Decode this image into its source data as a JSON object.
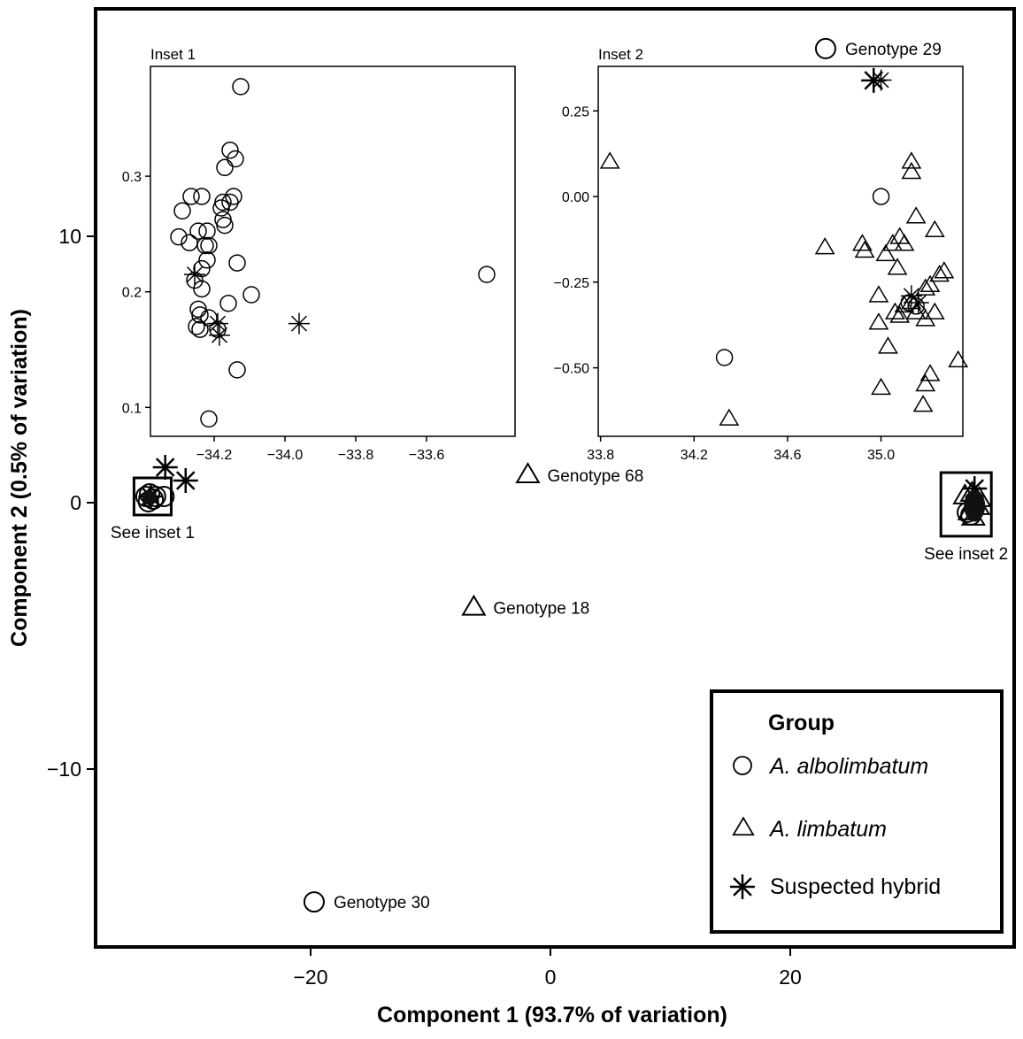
{
  "chart_data": {
    "type": "scatter",
    "xlabel": "Component 1 (93.7% of variation)",
    "ylabel": "Component 2 (0.5% of variation)",
    "xlim": [
      -38,
      38.5
    ],
    "ylim": [
      -16.8,
      18.6
    ],
    "xticks": [
      -20,
      0,
      20
    ],
    "xtick_labels": [
      "−20",
      "0",
      "20"
    ],
    "yticks": [
      -10,
      0,
      10
    ],
    "ytick_labels": [
      "−10",
      "0",
      "10"
    ],
    "legend": {
      "title": "Group",
      "position": "bottom-right",
      "entries": [
        {
          "label": "A. albolimbatum",
          "marker": "circle",
          "italic": true
        },
        {
          "label": "A. limbatum",
          "marker": "triangle",
          "italic": true
        },
        {
          "label": "Suspected hybrid",
          "marker": "asterisk",
          "italic": false
        }
      ]
    },
    "main_points": [
      {
        "group": "circle",
        "x": -19.8,
        "y": -15.1
      },
      {
        "group": "circle",
        "x": 22.8,
        "y": 17.1
      },
      {
        "group": "triangle",
        "x": -6.5,
        "y": -4.0
      },
      {
        "group": "triangle",
        "x": -2.0,
        "y": 1.0
      },
      {
        "group": "asterisk",
        "x": -32.2,
        "y": 1.3
      },
      {
        "group": "asterisk",
        "x": -30.5,
        "y": 0.8
      },
      {
        "group": "asterisk",
        "x": 26.8,
        "y": 15.9
      },
      {
        "group": "circle",
        "x": -33.8,
        "y": 0.2
      },
      {
        "group": "circle",
        "x": -33.5,
        "y": 0.3
      },
      {
        "group": "circle",
        "x": -33.2,
        "y": 0.1
      },
      {
        "group": "circle",
        "x": -33.0,
        "y": 0.2
      },
      {
        "group": "circle",
        "x": -33.6,
        "y": 0.0
      },
      {
        "group": "circle",
        "x": -32.3,
        "y": 0.2
      },
      {
        "group": "asterisk",
        "x": -33.4,
        "y": 0.2
      },
      {
        "group": "triangle",
        "x": 34.4,
        "y": 0.2
      },
      {
        "group": "triangle",
        "x": 35.0,
        "y": 0.3
      },
      {
        "group": "triangle",
        "x": 35.2,
        "y": 0.0
      },
      {
        "group": "triangle",
        "x": 35.5,
        "y": -0.2
      },
      {
        "group": "triangle",
        "x": 34.8,
        "y": -0.4
      },
      {
        "group": "triangle",
        "x": 35.1,
        "y": -0.6
      },
      {
        "group": "triangle",
        "x": 35.6,
        "y": 0.1
      },
      {
        "group": "circle",
        "x": 34.6,
        "y": -0.4
      },
      {
        "group": "circle",
        "x": 34.9,
        "y": -0.5
      },
      {
        "group": "asterisk",
        "x": 35.2,
        "y": 0.5
      }
    ],
    "annotations": [
      {
        "text": "Genotype 29",
        "x": 22.8,
        "y": 17.1
      },
      {
        "text": "Genotype 68",
        "x": -2.0,
        "y": 1.0
      },
      {
        "text": "Genotype 18",
        "x": -6.5,
        "y": -4.0
      },
      {
        "text": "Genotype 30",
        "x": -19.8,
        "y": -15.1
      }
    ],
    "inset_boxes": [
      {
        "label": "See inset 1",
        "xrange": [
          -34.8,
          -31.7
        ],
        "yrange": [
          -0.5,
          0.9
        ]
      },
      {
        "label": "See inset 2",
        "xrange": [
          32.4,
          36.6
        ],
        "yrange": [
          -1.3,
          1.1
        ]
      }
    ],
    "insets": [
      {
        "title": "Inset 1",
        "xlim": [
          -34.38,
          -33.35
        ],
        "ylim": [
          0.075,
          0.395
        ],
        "xticks": [
          -34.2,
          -34.0,
          -33.8,
          -33.6
        ],
        "xtick_labels": [
          "−34.2",
          "−34.0",
          "−33.8",
          "−33.6"
        ],
        "yticks": [
          0.1,
          0.2,
          0.3
        ],
        "ytick_labels": [
          "0.1",
          "0.2",
          "0.3"
        ],
        "points": [
          {
            "group": "circle",
            "x": -34.125,
            "y": 0.3775
          },
          {
            "group": "circle",
            "x": -34.155,
            "y": 0.3225
          },
          {
            "group": "circle",
            "x": -34.14,
            "y": 0.315
          },
          {
            "group": "circle",
            "x": -34.17,
            "y": 0.3075
          },
          {
            "group": "circle",
            "x": -34.265,
            "y": 0.2825
          },
          {
            "group": "circle",
            "x": -34.235,
            "y": 0.2825
          },
          {
            "group": "circle",
            "x": -34.145,
            "y": 0.2825
          },
          {
            "group": "circle",
            "x": -34.155,
            "y": 0.2775
          },
          {
            "group": "circle",
            "x": -34.175,
            "y": 0.2775
          },
          {
            "group": "circle",
            "x": -34.18,
            "y": 0.2725
          },
          {
            "group": "circle",
            "x": -34.29,
            "y": 0.27
          },
          {
            "group": "circle",
            "x": -34.175,
            "y": 0.2625
          },
          {
            "group": "circle",
            "x": -34.17,
            "y": 0.2575
          },
          {
            "group": "circle",
            "x": -34.3,
            "y": 0.2475
          },
          {
            "group": "circle",
            "x": -34.245,
            "y": 0.2525
          },
          {
            "group": "circle",
            "x": -34.22,
            "y": 0.2525
          },
          {
            "group": "circle",
            "x": -34.27,
            "y": 0.2425
          },
          {
            "group": "circle",
            "x": -34.225,
            "y": 0.24
          },
          {
            "group": "circle",
            "x": -34.215,
            "y": 0.24
          },
          {
            "group": "circle",
            "x": -34.22,
            "y": 0.2275
          },
          {
            "group": "circle",
            "x": -34.135,
            "y": 0.225
          },
          {
            "group": "circle",
            "x": -34.235,
            "y": 0.22
          },
          {
            "group": "circle",
            "x": -34.255,
            "y": 0.21
          },
          {
            "group": "circle",
            "x": -34.235,
            "y": 0.2025
          },
          {
            "group": "circle",
            "x": -34.095,
            "y": 0.1975
          },
          {
            "group": "circle",
            "x": -34.16,
            "y": 0.19
          },
          {
            "group": "circle",
            "x": -34.245,
            "y": 0.185
          },
          {
            "group": "circle",
            "x": -34.24,
            "y": 0.18
          },
          {
            "group": "circle",
            "x": -34.215,
            "y": 0.1775
          },
          {
            "group": "circle",
            "x": -34.25,
            "y": 0.17
          },
          {
            "group": "circle",
            "x": -34.24,
            "y": 0.1675
          },
          {
            "group": "circle",
            "x": -34.19,
            "y": 0.1675
          },
          {
            "group": "circle",
            "x": -34.135,
            "y": 0.1325
          },
          {
            "group": "circle",
            "x": -34.215,
            "y": 0.09
          },
          {
            "group": "circle",
            "x": -33.43,
            "y": 0.215
          },
          {
            "group": "asterisk",
            "x": -34.255,
            "y": 0.215
          },
          {
            "group": "asterisk",
            "x": -33.96,
            "y": 0.1725
          },
          {
            "group": "asterisk",
            "x": -34.19,
            "y": 0.1725
          },
          {
            "group": "asterisk",
            "x": -34.185,
            "y": 0.1625
          }
        ]
      },
      {
        "title": "Inset 2",
        "xlim": [
          33.79,
          35.35
        ],
        "ylim": [
          -0.7,
          0.38
        ],
        "xticks": [
          33.8,
          34.2,
          34.6,
          35.0
        ],
        "xtick_labels": [
          "33.8",
          "34.2",
          "34.6",
          "35.0"
        ],
        "yticks": [
          0.25,
          0.0,
          -0.25,
          -0.5
        ],
        "ytick_labels": [
          "0.25",
          "0.00",
          "−0.25",
          "−0.50"
        ],
        "points": [
          {
            "group": "triangle",
            "x": 33.84,
            "y": 0.1
          },
          {
            "group": "triangle",
            "x": 35.13,
            "y": 0.1
          },
          {
            "group": "triangle",
            "x": 35.13,
            "y": 0.07
          },
          {
            "group": "circle",
            "x": 35.0,
            "y": 0.0
          },
          {
            "group": "triangle",
            "x": 35.15,
            "y": -0.06
          },
          {
            "group": "triangle",
            "x": 35.23,
            "y": -0.1
          },
          {
            "group": "triangle",
            "x": 35.08,
            "y": -0.12
          },
          {
            "group": "triangle",
            "x": 35.1,
            "y": -0.14
          },
          {
            "group": "triangle",
            "x": 35.05,
            "y": -0.14
          },
          {
            "group": "triangle",
            "x": 34.92,
            "y": -0.14
          },
          {
            "group": "triangle",
            "x": 34.76,
            "y": -0.15
          },
          {
            "group": "triangle",
            "x": 34.93,
            "y": -0.16
          },
          {
            "group": "triangle",
            "x": 35.02,
            "y": -0.17
          },
          {
            "group": "triangle",
            "x": 35.07,
            "y": -0.21
          },
          {
            "group": "triangle",
            "x": 35.27,
            "y": -0.22
          },
          {
            "group": "triangle",
            "x": 35.25,
            "y": -0.23
          },
          {
            "group": "triangle",
            "x": 35.21,
            "y": -0.26
          },
          {
            "group": "triangle",
            "x": 35.19,
            "y": -0.27
          },
          {
            "group": "triangle",
            "x": 34.99,
            "y": -0.29
          },
          {
            "group": "triangle",
            "x": 35.13,
            "y": -0.31
          },
          {
            "group": "triangle",
            "x": 35.1,
            "y": -0.32
          },
          {
            "group": "triangle",
            "x": 35.15,
            "y": -0.34
          },
          {
            "group": "triangle",
            "x": 35.06,
            "y": -0.34
          },
          {
            "group": "triangle",
            "x": 35.08,
            "y": -0.35
          },
          {
            "group": "triangle",
            "x": 35.23,
            "y": -0.34
          },
          {
            "group": "triangle",
            "x": 35.19,
            "y": -0.36
          },
          {
            "group": "triangle",
            "x": 34.99,
            "y": -0.37
          },
          {
            "group": "triangle",
            "x": 35.03,
            "y": -0.44
          },
          {
            "group": "triangle",
            "x": 35.33,
            "y": -0.48
          },
          {
            "group": "triangle",
            "x": 35.21,
            "y": -0.52
          },
          {
            "group": "triangle",
            "x": 35.19,
            "y": -0.55
          },
          {
            "group": "triangle",
            "x": 35.0,
            "y": -0.56
          },
          {
            "group": "triangle",
            "x": 35.18,
            "y": -0.61
          },
          {
            "group": "triangle",
            "x": 34.35,
            "y": -0.65
          },
          {
            "group": "circle",
            "x": 35.15,
            "y": -0.32
          },
          {
            "group": "circle",
            "x": 35.12,
            "y": -0.31
          },
          {
            "group": "circle",
            "x": 34.33,
            "y": -0.47
          },
          {
            "group": "asterisk",
            "x": 35.0,
            "y": 0.34
          },
          {
            "group": "asterisk",
            "x": 35.13,
            "y": -0.29
          },
          {
            "group": "asterisk",
            "x": 35.16,
            "y": -0.31
          }
        ]
      }
    ]
  }
}
